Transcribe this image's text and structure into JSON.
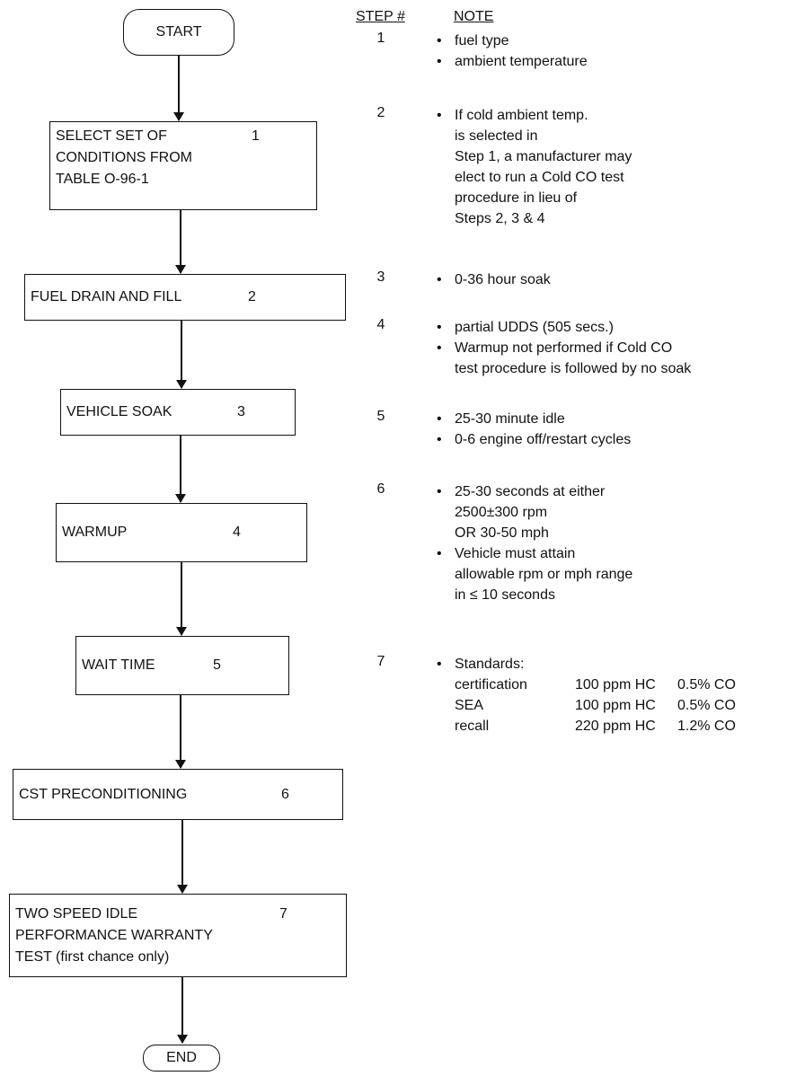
{
  "flowchart": {
    "start": "START",
    "end": "END",
    "boxes": [
      {
        "lines": [
          "SELECT SET OF",
          "CONDITIONS FROM",
          "TABLE O-96-1"
        ],
        "step": "1"
      },
      {
        "lines": [
          "FUEL DRAIN AND FILL"
        ],
        "step": "2"
      },
      {
        "lines": [
          "VEHICLE SOAK"
        ],
        "step": "3"
      },
      {
        "lines": [
          "WARMUP"
        ],
        "step": "4"
      },
      {
        "lines": [
          "WAIT TIME"
        ],
        "step": "5"
      },
      {
        "lines": [
          "CST PRECONDITIONING"
        ],
        "step": "6"
      },
      {
        "lines": [
          "TWO SPEED IDLE",
          "PERFORMANCE WARRANTY",
          "TEST (first chance only)"
        ],
        "step": "7"
      }
    ]
  },
  "notes": {
    "step_header": "STEP #",
    "note_header": "NOTE",
    "steps": [
      {
        "step": "1",
        "bullets": [
          [
            "fuel type"
          ],
          [
            "ambient temperature"
          ]
        ]
      },
      {
        "step": "2",
        "bullets": [
          [
            "If cold ambient temp.",
            "is selected in",
            "Step 1, a manufacturer may",
            "elect to run a Cold CO test",
            "procedure in lieu of",
            "Steps 2, 3 & 4"
          ]
        ]
      },
      {
        "step": "3",
        "bullets": [
          [
            "0-36 hour soak"
          ]
        ]
      },
      {
        "step": "4",
        "bullets": [
          [
            "partial UDDS (505 secs.)"
          ],
          [
            "Warmup not performed if Cold CO",
            "test procedure is followed by no soak"
          ]
        ]
      },
      {
        "step": "5",
        "bullets": [
          [
            "25-30 minute idle"
          ],
          [
            "0-6 engine off/restart cycles"
          ]
        ]
      },
      {
        "step": "6",
        "bullets": [
          [
            "25-30 seconds at either",
            "2500±300 rpm",
            "OR 30-50 mph"
          ],
          [
            "Vehicle must attain",
            "allowable rpm or mph range",
            "in ≤ 10 seconds"
          ]
        ]
      },
      {
        "step": "7",
        "bullets": [
          [
            "Standards:"
          ]
        ]
      }
    ],
    "standards": [
      {
        "type": "certification",
        "hc": "100 ppm HC",
        "co": "0.5% CO"
      },
      {
        "type": "SEA",
        "hc": "100 ppm HC",
        "co": "0.5% CO"
      },
      {
        "type": "recall",
        "hc": "220 ppm HC",
        "co": "1.2% CO"
      }
    ]
  }
}
